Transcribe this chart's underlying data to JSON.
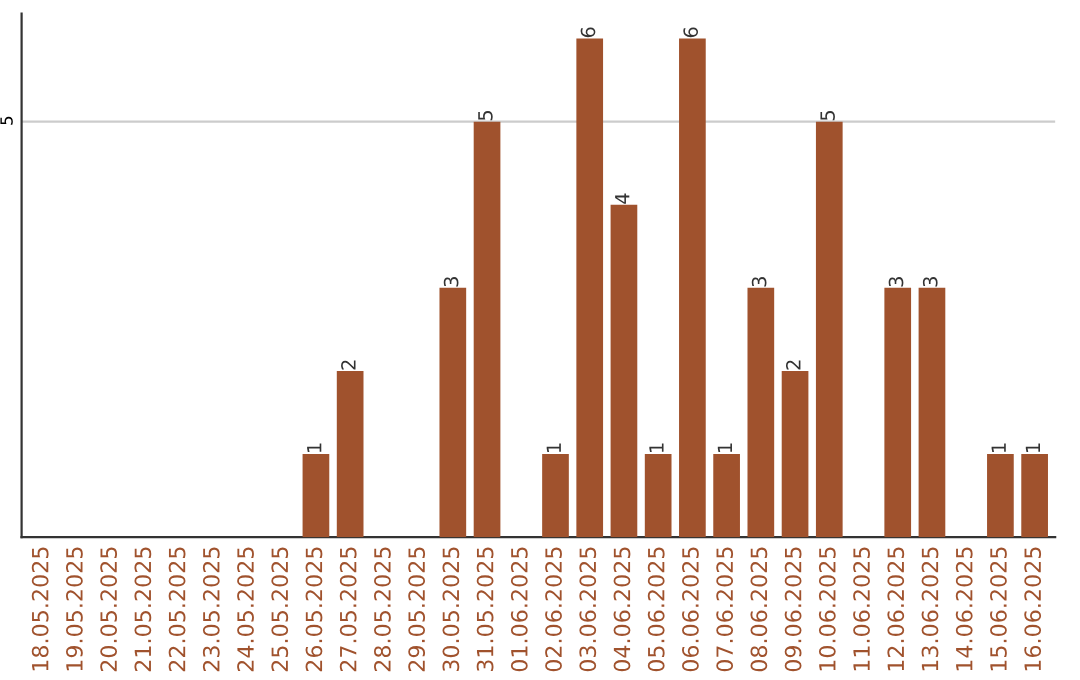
{
  "chart_data": {
    "type": "bar",
    "categories": [
      "18.05.2025",
      "19.05.2025",
      "20.05.2025",
      "21.05.2025",
      "22.05.2025",
      "23.05.2025",
      "24.05.2025",
      "25.05.2025",
      "26.05.2025",
      "27.05.2025",
      "28.05.2025",
      "29.05.2025",
      "30.05.2025",
      "31.05.2025",
      "01.06.2025",
      "02.06.2025",
      "03.06.2025",
      "04.06.2025",
      "05.06.2025",
      "06.06.2025",
      "07.06.2025",
      "08.06.2025",
      "09.06.2025",
      "10.06.2025",
      "11.06.2025",
      "12.06.2025",
      "13.06.2025",
      "14.06.2025",
      "15.06.2025",
      "16.06.2025"
    ],
    "values": [
      0,
      0,
      0,
      0,
      0,
      0,
      0,
      0,
      1,
      2,
      0,
      0,
      3,
      5,
      0,
      1,
      6,
      4,
      1,
      6,
      1,
      3,
      2,
      5,
      0,
      3,
      3,
      0,
      1,
      1
    ],
    "value_labels": [
      null,
      null,
      null,
      null,
      null,
      null,
      null,
      null,
      "1",
      "2",
      null,
      null,
      "3",
      "5",
      null,
      "1",
      "6",
      "4",
      "1",
      "6",
      "1",
      "3",
      "2",
      "5",
      null,
      "3",
      "3",
      null,
      "1",
      "1"
    ],
    "color": "#a0522d",
    "ylim": [
      0,
      6.3
    ],
    "yticks": [
      5
    ],
    "grid": "y"
  }
}
